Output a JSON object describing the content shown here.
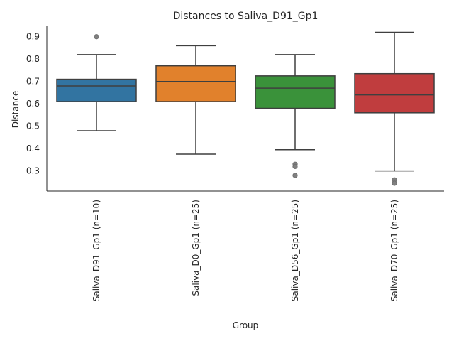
{
  "chart_data": {
    "type": "box",
    "title": "Distances to Saliva_D91_Gp1",
    "xlabel": "Group",
    "ylabel": "Distance",
    "ylim": [
      0.21,
      0.95
    ],
    "yticks": [
      0.3,
      0.4,
      0.5,
      0.6,
      0.7,
      0.8,
      0.9
    ],
    "grid": false,
    "legend": "none",
    "categories": [
      "Saliva_D91_Gp1 (n=10)",
      "Saliva_D0_Gp1 (n=25)",
      "Saliva_D56_Gp1 (n=25)",
      "Saliva_D70_Gp1 (n=25)"
    ],
    "boxes": [
      {
        "category": "Saliva_D91_Gp1 (n=10)",
        "whisker_low": 0.48,
        "q1": 0.61,
        "median": 0.68,
        "q3": 0.71,
        "whisker_high": 0.82,
        "outliers": [
          0.9
        ],
        "color": "#3274a1"
      },
      {
        "category": "Saliva_D0_Gp1 (n=25)",
        "whisker_low": 0.375,
        "q1": 0.61,
        "median": 0.7,
        "q3": 0.77,
        "whisker_high": 0.86,
        "outliers": [],
        "color": "#e1812c"
      },
      {
        "category": "Saliva_D56_Gp1 (n=25)",
        "whisker_low": 0.395,
        "q1": 0.58,
        "median": 0.67,
        "q3": 0.725,
        "whisker_high": 0.82,
        "outliers": [
          0.33,
          0.32,
          0.28
        ],
        "color": "#3a923a"
      },
      {
        "category": "Saliva_D70_Gp1 (n=25)",
        "whisker_low": 0.3,
        "q1": 0.56,
        "median": 0.64,
        "q3": 0.735,
        "whisker_high": 0.92,
        "outliers": [
          0.26,
          0.245
        ],
        "color": "#c03d3e"
      }
    ]
  }
}
